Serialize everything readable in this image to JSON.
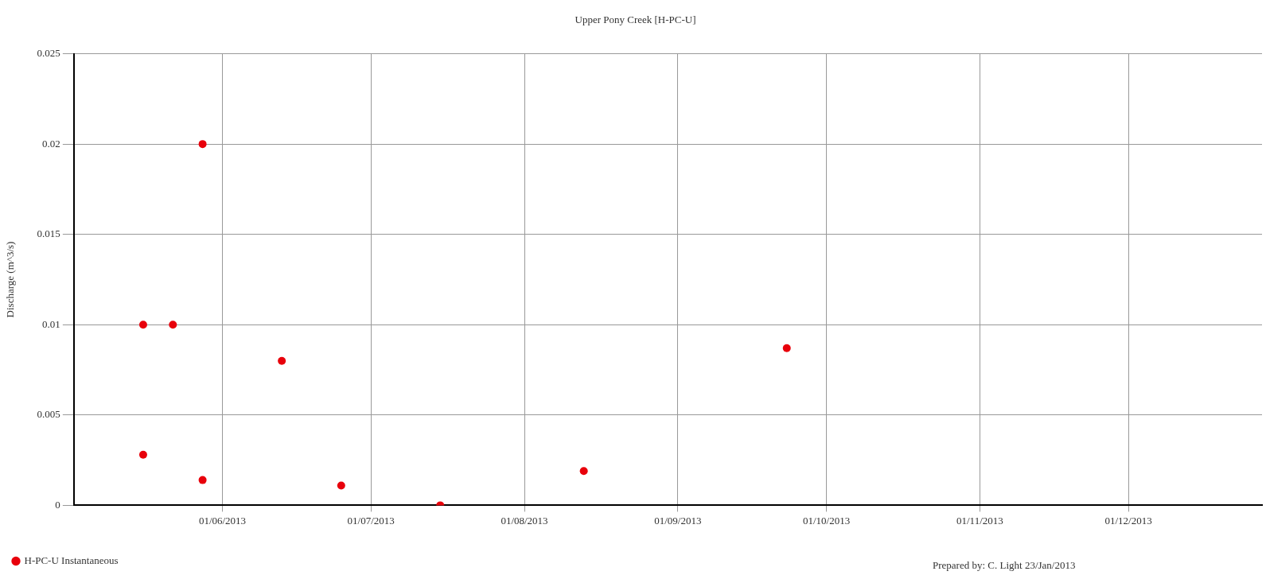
{
  "chart_data": {
    "type": "scatter",
    "title": "Upper Pony Creek [H-PC-U]",
    "ylabel": "Discharge (m^3/s)",
    "x": [
      "2013-05-16",
      "2013-05-16",
      "2013-05-22",
      "2013-05-28",
      "2013-05-28",
      "2013-06-13",
      "2013-06-25",
      "2013-07-15",
      "2013-08-13",
      "2013-09-23"
    ],
    "series": [
      {
        "name": "H-PC-U Instantaneous",
        "color": "#e8000b",
        "values": [
          0.01,
          0.0028,
          0.01,
          0.02,
          0.0014,
          0.008,
          0.0011,
          0,
          0.0019,
          0.0087
        ]
      }
    ],
    "xlim": [
      "2013-05-02",
      "2013-12-28"
    ],
    "xticks": [
      {
        "value": "2013-06-01",
        "label": "01/06/2013"
      },
      {
        "value": "2013-07-01",
        "label": "01/07/2013"
      },
      {
        "value": "2013-08-01",
        "label": "01/08/2013"
      },
      {
        "value": "2013-09-01",
        "label": "01/09/2013"
      },
      {
        "value": "2013-10-01",
        "label": "01/10/2013"
      },
      {
        "value": "2013-11-01",
        "label": "01/11/2013"
      },
      {
        "value": "2013-12-01",
        "label": "01/12/2013"
      }
    ],
    "ylim": [
      0,
      0.025
    ],
    "yticks": [
      0,
      0.005,
      0.01,
      0.015,
      0.02,
      0.025
    ],
    "grid": true,
    "legend": "bottom left",
    "marker": "circle",
    "annotations": [
      "Prepared by: C. Light 23/Jan/2013"
    ]
  }
}
